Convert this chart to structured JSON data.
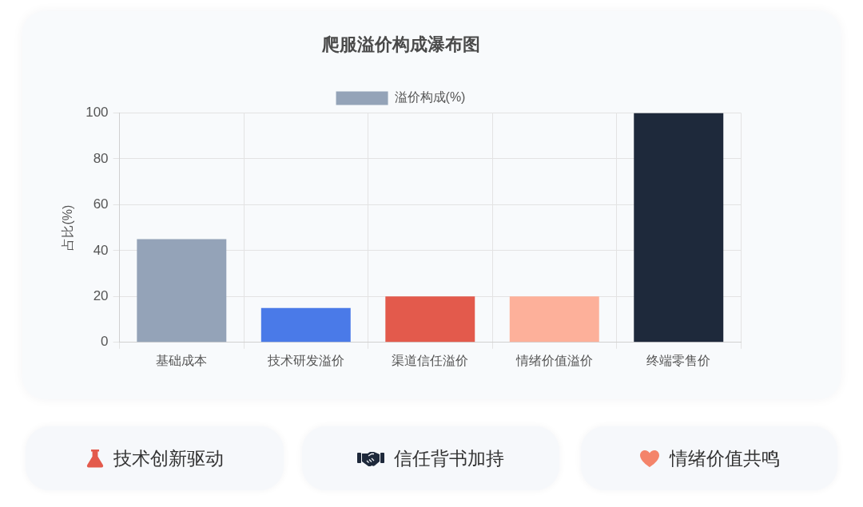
{
  "chart_data": [
    {
      "type": "bar",
      "title": "爬服溢价构成瀑布图",
      "ylabel": "占比(%)",
      "categories": [
        "基础成本",
        "技术研发溢价",
        "渠道信任溢价",
        "情绪价值溢价",
        "终端零售价"
      ],
      "series": [
        {
          "name": "溢价构成(%)",
          "colors": [
            "#94a3b8",
            "#4a7ae8",
            "#e35a4c",
            "#fdb09a",
            "#1e293b"
          ],
          "values": [
            45,
            15,
            20,
            20,
            100
          ]
        }
      ],
      "ylim": [
        0,
        100
      ],
      "yticks": [
        0,
        20,
        40,
        60,
        80,
        100
      ],
      "grid": true,
      "legend": "top"
    },
    {
      "type": "other",
      "annotations": [
        "技术创新驱动",
        "信任背书加持",
        "情绪价值共鸣"
      ]
    }
  ]
}
